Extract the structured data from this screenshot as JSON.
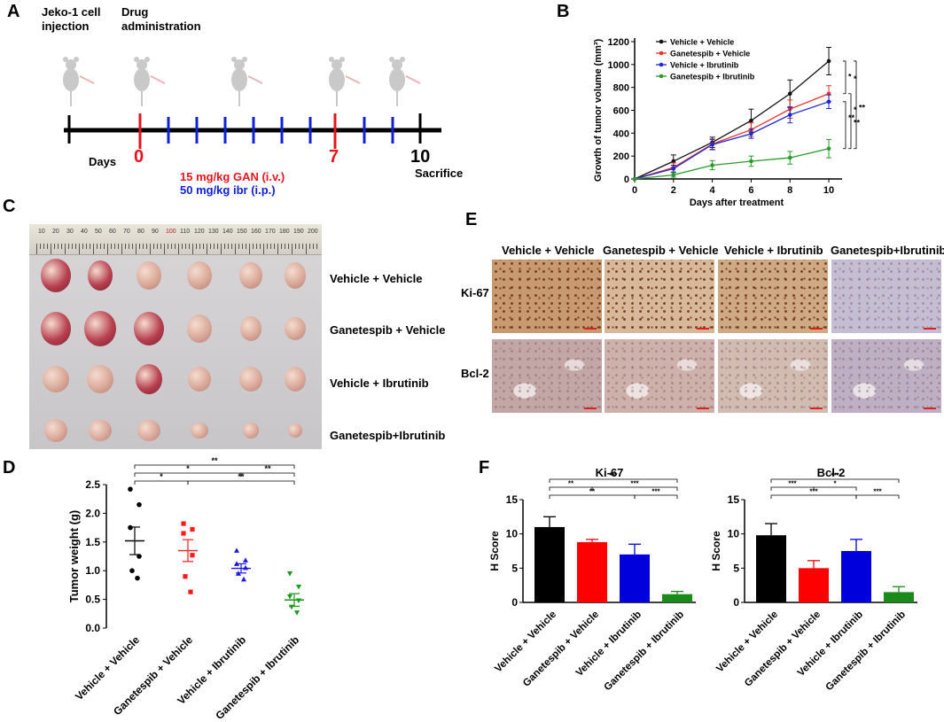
{
  "panelA": {
    "label": "A",
    "injection_label": "Jeko-1 cell injection",
    "drug_label": "Drug administration",
    "days_label": "Days",
    "day0": "0",
    "day7": "7",
    "day10": "10",
    "sacrifice": "Sacrifice",
    "gan_dose": "15 mg/kg GAN (i.v.)",
    "ibr_dose": "50 mg/kg ibr (i.p.)",
    "colors": {
      "gan": "#e8141d",
      "ibr": "#1020d8"
    }
  },
  "panelB": {
    "label": "B",
    "chart_data": {
      "type": "line",
      "xlabel": "Days after treatment",
      "ylabel": "Growth of tumor volume (mm³)",
      "x": [
        0,
        2,
        4,
        6,
        8,
        10
      ],
      "xlim": [
        0,
        10.5
      ],
      "ylim": [
        0,
        1200
      ],
      "xticks": [
        0,
        2,
        4,
        6,
        8,
        10
      ],
      "yticks": [
        0,
        200,
        400,
        600,
        800,
        1000,
        1200
      ],
      "series": [
        {
          "name": "Vehicle + Vehicle",
          "color": "#111111",
          "values": [
            0,
            155,
            320,
            510,
            745,
            1030
          ],
          "err": [
            0,
            55,
            45,
            100,
            120,
            120
          ]
        },
        {
          "name": "Ganetespib + Vehicle",
          "color": "#f0302a",
          "values": [
            0,
            100,
            305,
            430,
            610,
            745
          ],
          "err": [
            0,
            40,
            45,
            60,
            80,
            70
          ]
        },
        {
          "name": "Vehicle + Ibrutinib",
          "color": "#1c2ad0",
          "values": [
            0,
            90,
            300,
            395,
            560,
            675
          ],
          "err": [
            0,
            30,
            45,
            40,
            70,
            60
          ]
        },
        {
          "name": "Ganetespib + Ibrutinib",
          "color": "#2a9a2a",
          "values": [
            0,
            35,
            120,
            155,
            185,
            265
          ],
          "err": [
            0,
            20,
            40,
            45,
            55,
            80
          ]
        }
      ],
      "significance": [
        "*",
        "*",
        "**",
        "*",
        "**",
        "**"
      ]
    }
  },
  "panelC": {
    "label": "C",
    "ruler_numbers": [
      "10",
      "20",
      "30",
      "40",
      "50",
      "60",
      "70",
      "80",
      "90",
      "100",
      "110",
      "120",
      "130",
      "140",
      "150",
      "160",
      "170",
      "180",
      "190",
      "200"
    ],
    "rows": [
      "Vehicle + Vehicle",
      "Ganetespib + Vehicle",
      "Vehicle + Ibrutinib",
      "Ganetespib+Ibrutinib"
    ]
  },
  "panelD": {
    "label": "D",
    "chart_data": {
      "type": "scatter",
      "ylabel": "Tumor weight (g)",
      "ylim": [
        0,
        2.5
      ],
      "yticks": [
        "0.0",
        "0.5",
        "1.0",
        "1.5",
        "2.0",
        "2.5"
      ],
      "categories": [
        "Vehicle + Vehicle",
        "Ganetespib + Vehicle",
        "Vehicle + Ibrutinib",
        "Ganetespib + Ibrutinib"
      ],
      "groups": [
        {
          "color": "#000000",
          "marker": "circle",
          "points": [
            2.42,
            2.15,
            1.75,
            1.25,
            1.0,
            0.87
          ],
          "mean": 1.52,
          "sem": 0.24
        },
        {
          "color": "#ff1a1a",
          "marker": "square",
          "points": [
            1.82,
            1.72,
            1.65,
            1.27,
            0.9,
            0.63
          ],
          "mean": 1.35,
          "sem": 0.19
        },
        {
          "color": "#1a1ae6",
          "marker": "triangle",
          "points": [
            1.35,
            1.18,
            1.12,
            1.05,
            0.95,
            0.85
          ],
          "mean": 1.04,
          "sem": 0.08
        },
        {
          "color": "#1a9a1a",
          "marker": "triangle-down",
          "points": [
            0.95,
            0.72,
            0.55,
            0.48,
            0.37,
            0.27
          ],
          "mean": 0.49,
          "sem": 0.11
        }
      ],
      "brackets": [
        {
          "from": 0,
          "to": 3,
          "label": "**"
        },
        {
          "from": 0,
          "to": 2,
          "label": "*"
        },
        {
          "from": 2,
          "to": 3,
          "label": "**"
        },
        {
          "from": 0,
          "to": 1,
          "label": "*"
        },
        {
          "from": 1,
          "to": 3,
          "label": "**"
        }
      ]
    }
  },
  "panelE": {
    "label": "E",
    "columns": [
      "Vehicle + Vehicle",
      "Ganetespib + Vehicle",
      "Vehicle + Ibrutinib",
      "Ganetespib+Ibrutinib"
    ],
    "rows": [
      "Ki-67",
      "Bcl-2"
    ]
  },
  "panelF": {
    "label": "F",
    "chart_data": [
      {
        "type": "bar",
        "title": "Ki-67",
        "ylabel": "H Score",
        "ylim": [
          0,
          15
        ],
        "yticks": [
          "0",
          "5",
          "10",
          "15"
        ],
        "categories": [
          "Vehicle + Vehicle",
          "Ganetespib + Vehicle",
          "Vehicle + Ibrutinib",
          "Ganetespib + Ibrutinib"
        ],
        "values": [
          11.0,
          8.8,
          7.0,
          1.2
        ],
        "err": [
          1.5,
          0.4,
          1.5,
          0.4
        ],
        "colors": [
          "#000000",
          "#ff0000",
          "#0000dd",
          "#1a8a1a"
        ],
        "brackets": [
          {
            "from": 0,
            "to": 3,
            "label": "***"
          },
          {
            "from": 0,
            "to": 1,
            "label": "**"
          },
          {
            "from": 1,
            "to": 3,
            "label": "***"
          },
          {
            "from": 0,
            "to": 2,
            "label": "**"
          },
          {
            "from": 2,
            "to": 3,
            "label": "***"
          }
        ]
      },
      {
        "type": "bar",
        "title": "Bcl-2",
        "ylabel": "H Score",
        "ylim": [
          0,
          15
        ],
        "yticks": [
          "0",
          "5",
          "10",
          "15"
        ],
        "categories": [
          "Vehicle + Vehicle",
          "Ganetespib + Vehicle",
          "Vehicle + Ibrutinib",
          "Ganetespib + Ibrutinib"
        ],
        "values": [
          9.8,
          5.0,
          7.5,
          1.5
        ],
        "err": [
          1.7,
          1.1,
          1.7,
          0.8
        ],
        "colors": [
          "#000000",
          "#ff0000",
          "#0000dd",
          "#1a8a1a"
        ],
        "brackets": [
          {
            "from": 0,
            "to": 3,
            "label": "***"
          },
          {
            "from": 0,
            "to": 1,
            "label": "***"
          },
          {
            "from": 1,
            "to": 2,
            "label": "*"
          },
          {
            "from": 0,
            "to": 2,
            "label": "***"
          },
          {
            "from": 2,
            "to": 3,
            "label": "***"
          }
        ]
      }
    ]
  }
}
